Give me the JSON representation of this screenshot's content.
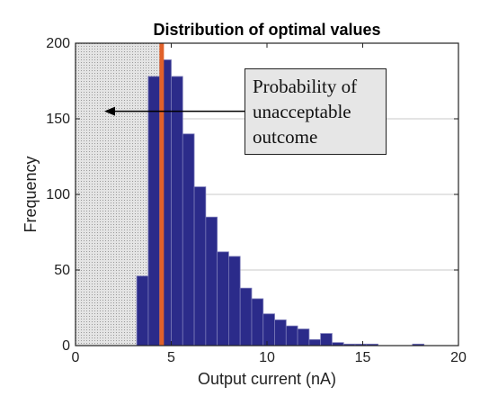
{
  "chart_data": {
    "type": "bar",
    "title": "Distribution of optimal values",
    "xlabel": "Output current (nA)",
    "ylabel": "Frequency",
    "xlim": [
      0,
      20
    ],
    "ylim": [
      0,
      200
    ],
    "xticks": [
      0,
      5,
      10,
      15,
      20
    ],
    "yticks": [
      0,
      50,
      100,
      150,
      200
    ],
    "grid": true,
    "bin_width": 0.6,
    "bins": [
      {
        "x0": 3.2,
        "value": 46
      },
      {
        "x0": 3.8,
        "value": 178
      },
      {
        "x0": 4.4,
        "value": 189
      },
      {
        "x0": 5.0,
        "value": 178
      },
      {
        "x0": 5.6,
        "value": 140
      },
      {
        "x0": 6.2,
        "value": 105
      },
      {
        "x0": 6.8,
        "value": 85
      },
      {
        "x0": 7.4,
        "value": 62
      },
      {
        "x0": 8.0,
        "value": 59
      },
      {
        "x0": 8.6,
        "value": 38
      },
      {
        "x0": 9.2,
        "value": 31
      },
      {
        "x0": 9.8,
        "value": 21
      },
      {
        "x0": 10.4,
        "value": 17
      },
      {
        "x0": 11.0,
        "value": 13
      },
      {
        "x0": 11.6,
        "value": 11
      },
      {
        "x0": 12.2,
        "value": 4
      },
      {
        "x0": 12.8,
        "value": 8
      },
      {
        "x0": 13.4,
        "value": 2
      },
      {
        "x0": 14.0,
        "value": 1
      },
      {
        "x0": 14.6,
        "value": 1
      },
      {
        "x0": 15.2,
        "value": 1
      },
      {
        "x0": 15.8,
        "value": 0
      },
      {
        "x0": 16.4,
        "value": 0
      },
      {
        "x0": 17.0,
        "value": 0
      },
      {
        "x0": 17.6,
        "value": 1
      }
    ],
    "threshold_value": 4.5,
    "shaded_region": [
      0,
      4.5
    ],
    "annotation": {
      "lines": [
        "Probability of",
        "unacceptable",
        "outcome"
      ],
      "arrow_target": [
        1.5,
        155
      ]
    },
    "colors": {
      "bar_fill": "#2b2b8a",
      "bar_edge": "#7a7ab8",
      "threshold_line": "#e0612a",
      "shaded_region": "#d9d9d9"
    }
  }
}
